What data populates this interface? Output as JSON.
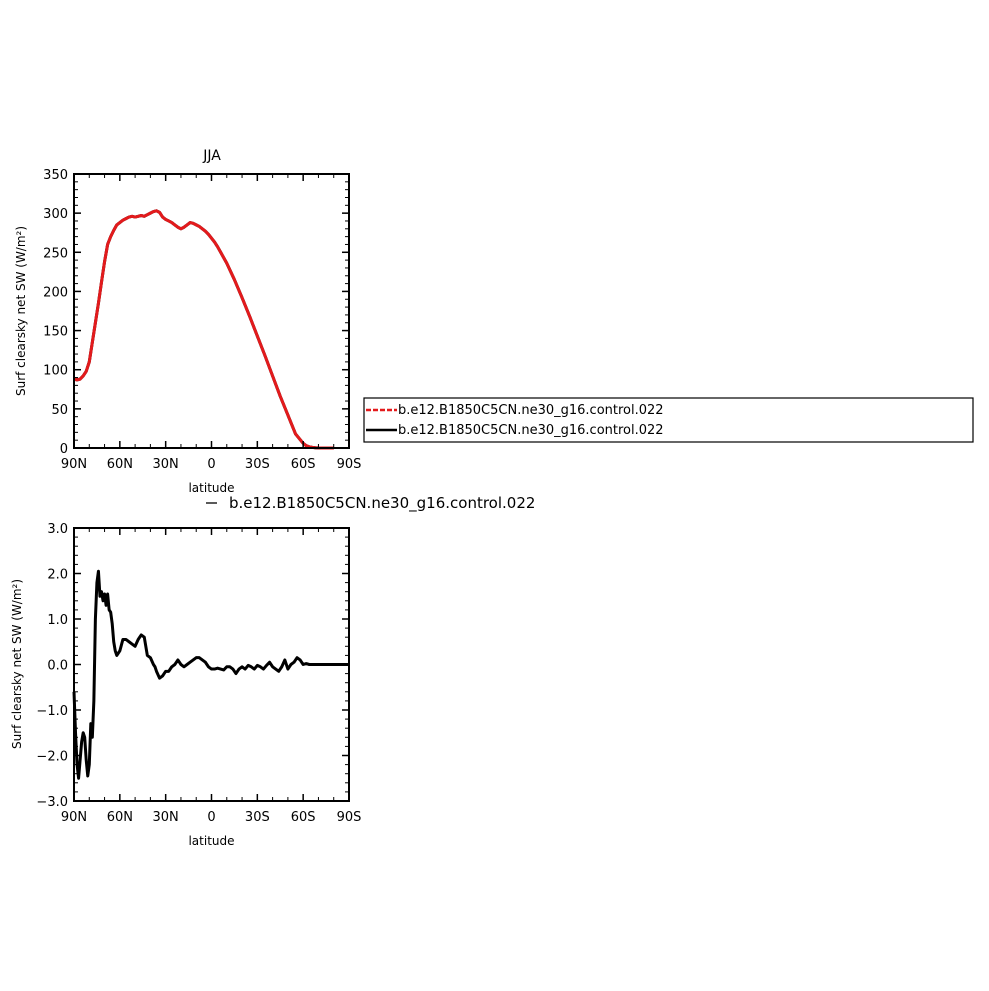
{
  "chart_data": [
    {
      "type": "line",
      "title": "JJA",
      "xlabel": "latitude",
      "ylabel": "Surf clearsky net SW (W/m²)",
      "xlim": [
        90,
        -90
      ],
      "ylim": [
        0,
        350
      ],
      "xticks": [
        90,
        60,
        30,
        0,
        -30,
        -60,
        -90
      ],
      "xtick_labels": [
        "90N",
        "60N",
        "30N",
        "0",
        "30S",
        "60S",
        "90S"
      ],
      "yticks": [
        0,
        50,
        100,
        150,
        200,
        250,
        300,
        350
      ],
      "ytick_labels": [
        "0",
        "50",
        "100",
        "150",
        "200",
        "250",
        "300",
        "350"
      ],
      "x": [
        90,
        88,
        86,
        84,
        82,
        80,
        78,
        76,
        74,
        72,
        70,
        68,
        66,
        64,
        62,
        60,
        58,
        56,
        54,
        52,
        50,
        48,
        46,
        44,
        42,
        40,
        38,
        36,
        34,
        32,
        30,
        28,
        26,
        24,
        22,
        20,
        18,
        16,
        14,
        12,
        10,
        8,
        6,
        4,
        2,
        0,
        -2,
        -4,
        -6,
        -8,
        -10,
        -15,
        -20,
        -25,
        -30,
        -35,
        -40,
        -45,
        -50,
        -55,
        -60,
        -62,
        -64,
        -66,
        -68,
        -70,
        -72,
        -74,
        -76,
        -78,
        -80
      ],
      "series": [
        {
          "name": "b.e12.B1850C5CN.ne30_g16.control.022",
          "color": "#e31a1c",
          "style": "dashed",
          "values": [
            88,
            87,
            88,
            92,
            98,
            110,
            135,
            160,
            185,
            212,
            238,
            260,
            270,
            278,
            285,
            288,
            291,
            293,
            295,
            296,
            295,
            296,
            297,
            296,
            298,
            300,
            302,
            303,
            301,
            295,
            292,
            290,
            288,
            285,
            282,
            280,
            282,
            285,
            288,
            287,
            285,
            283,
            280,
            277,
            273,
            268,
            263,
            257,
            250,
            243,
            236,
            215,
            192,
            168,
            143,
            118,
            92,
            66,
            42,
            18,
            6,
            3,
            1.5,
            0.8,
            0.3,
            0.1,
            0,
            0,
            0,
            0,
            0
          ]
        },
        {
          "name": "b.e12.B1850C5CN.ne30_g16.control.022",
          "color": "#000000",
          "style": "solid",
          "values": [
            88,
            87,
            88,
            92,
            98,
            110,
            135,
            160,
            185,
            212,
            238,
            260,
            270,
            278,
            285,
            288,
            291,
            293,
            295,
            296,
            295,
            296,
            297,
            296,
            298,
            300,
            302,
            303,
            301,
            295,
            292,
            290,
            288,
            285,
            282,
            280,
            282,
            285,
            288,
            287,
            285,
            283,
            280,
            277,
            273,
            268,
            263,
            257,
            250,
            243,
            236,
            215,
            192,
            168,
            143,
            118,
            92,
            66,
            42,
            18,
            6,
            3,
            1.5,
            0.8,
            0.3,
            0.1,
            0,
            0,
            0,
            0,
            0
          ]
        }
      ],
      "legend_position": "right"
    },
    {
      "type": "line",
      "title": "",
      "xlabel": "latitude",
      "ylabel": "Surf clearsky net SW (W/m²)",
      "xlim": [
        90,
        -90
      ],
      "ylim": [
        -3.0,
        3.0
      ],
      "xticks": [
        90,
        60,
        30,
        0,
        -30,
        -60,
        -90
      ],
      "xtick_labels": [
        "90N",
        "60N",
        "30N",
        "0",
        "30S",
        "60S",
        "90S"
      ],
      "yticks": [
        -3,
        -2,
        -1,
        0,
        1,
        2,
        3
      ],
      "ytick_labels": [
        "−3.0",
        "−2.0",
        "−1.0",
        "0.0",
        "1.0",
        "2.0",
        "3.0"
      ],
      "x": [
        90,
        89,
        88,
        87,
        86,
        85,
        84,
        83,
        82,
        81,
        80,
        79,
        78,
        77,
        76,
        75,
        74,
        73,
        72,
        71,
        70,
        69,
        68,
        67,
        66,
        65,
        64,
        63,
        62,
        61,
        60,
        58,
        56,
        54,
        52,
        50,
        48,
        46,
        44,
        42,
        40,
        38,
        37,
        36,
        34,
        32,
        30,
        28,
        26,
        24,
        22,
        20,
        18,
        16,
        14,
        12,
        10,
        8,
        6,
        4,
        2,
        0,
        -2,
        -4,
        -6,
        -8,
        -10,
        -12,
        -14,
        -16,
        -18,
        -20,
        -22,
        -24,
        -26,
        -28,
        -30,
        -32,
        -34,
        -36,
        -38,
        -40,
        -42,
        -44,
        -46,
        -48,
        -50,
        -52,
        -54,
        -56,
        -58,
        -60,
        -62,
        -64,
        -66,
        -68,
        -70,
        -75,
        -80,
        -85,
        -90
      ],
      "series": [
        {
          "name": "b.e12.B1850C5CN.ne30_g16.control.022",
          "color": "#000000",
          "style": "solid",
          "values": [
            -0.6,
            -1.5,
            -2.2,
            -2.5,
            -2.1,
            -1.7,
            -1.5,
            -1.6,
            -2.1,
            -2.45,
            -2.2,
            -1.3,
            -1.6,
            -0.8,
            1.0,
            1.8,
            2.05,
            1.5,
            1.6,
            1.4,
            1.55,
            1.3,
            1.55,
            1.2,
            1.15,
            0.9,
            0.5,
            0.3,
            0.2,
            0.25,
            0.3,
            0.55,
            0.55,
            0.5,
            0.45,
            0.4,
            0.55,
            0.65,
            0.6,
            0.2,
            0.15,
            0.0,
            -0.05,
            -0.15,
            -0.3,
            -0.25,
            -0.15,
            -0.15,
            -0.05,
            0.0,
            0.1,
            0.0,
            -0.05,
            0.0,
            0.05,
            0.1,
            0.15,
            0.15,
            0.1,
            0.05,
            -0.05,
            -0.1,
            -0.1,
            -0.08,
            -0.1,
            -0.12,
            -0.05,
            -0.05,
            -0.1,
            -0.2,
            -0.1,
            -0.05,
            -0.1,
            -0.02,
            -0.05,
            -0.1,
            -0.02,
            -0.05,
            -0.1,
            -0.02,
            0.05,
            -0.05,
            -0.1,
            -0.15,
            -0.05,
            0.1,
            -0.1,
            0.0,
            0.05,
            0.15,
            0.1,
            0.0,
            0.02,
            0.0,
            0.0,
            0.0,
            0.0,
            0.0,
            0.0,
            0.0,
            0.0
          ]
        }
      ],
      "legend_position": "top"
    }
  ]
}
